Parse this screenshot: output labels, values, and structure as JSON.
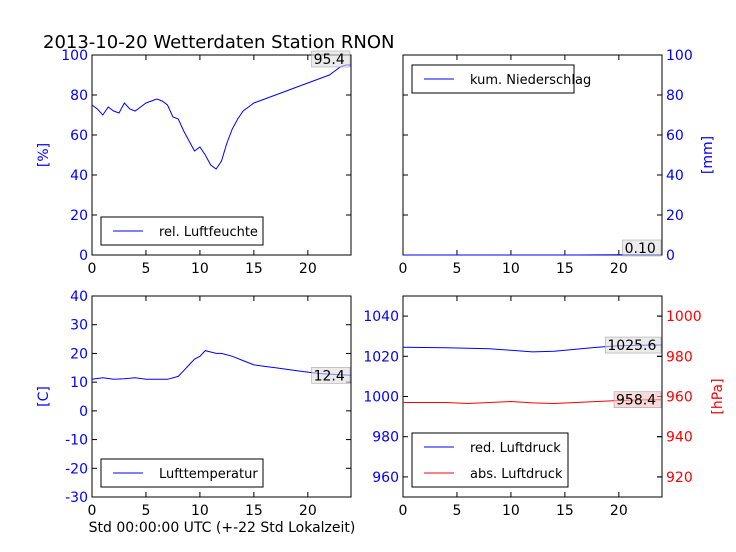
{
  "title": "2013-10-20 Wetterdaten Station RNON",
  "footer_label": "Std 00:00:00 UTC (+-22 Std Lokalzeit)",
  "colors": {
    "blue": "#0000ff",
    "red": "#ff0000",
    "black": "#000000",
    "label_box_gray": "#dddddd",
    "label_box_red": "#f4c2c2"
  },
  "chart_data": [
    {
      "id": "humidity",
      "type": "line",
      "xlim": [
        0,
        24
      ],
      "ylim": [
        0,
        100
      ],
      "xticks": [
        0,
        5,
        10,
        15,
        20
      ],
      "yticks": [
        0,
        20,
        40,
        60,
        80,
        100
      ],
      "ylabel": "[%]",
      "ylabel_side": "left",
      "ytick_color": "#0000ff",
      "legend_position": "lower-left",
      "value_label": "95.4",
      "value_label_style": "gray",
      "series": [
        {
          "name": "rel. Luftfeuchte",
          "color": "#0000ff",
          "x": [
            0,
            0.5,
            1,
            1.5,
            2,
            2.5,
            3,
            3.5,
            4,
            4.5,
            5,
            5.5,
            6,
            6.5,
            7,
            7.5,
            8,
            8.5,
            9,
            9.5,
            10,
            10.5,
            11,
            11.5,
            12,
            12.5,
            13,
            13.5,
            14,
            14.5,
            15,
            15.5,
            16,
            16.5,
            17,
            17.5,
            18,
            18.5,
            19,
            19.5,
            20,
            20.5,
            21,
            21.5,
            22,
            22.5,
            23,
            23.5,
            24
          ],
          "y": [
            75,
            73,
            70,
            74,
            72,
            71,
            76,
            73,
            72,
            74,
            76,
            77,
            78,
            77,
            75,
            69,
            68,
            62,
            57,
            52,
            54,
            50,
            45,
            43,
            47,
            56,
            63,
            68,
            72,
            74,
            76,
            77,
            78,
            79,
            80,
            81,
            82,
            83,
            84,
            85,
            86,
            87,
            88,
            89,
            90,
            92,
            94,
            95,
            95
          ]
        }
      ]
    },
    {
      "id": "precipitation",
      "type": "line",
      "xlim": [
        0,
        24
      ],
      "ylim": [
        0,
        100
      ],
      "xticks": [
        0,
        5,
        10,
        15,
        20
      ],
      "yticks": [
        0,
        20,
        40,
        60,
        80,
        100
      ],
      "ylabel": "[mm]",
      "ylabel_side": "right",
      "ytick_color": "#0000ff",
      "legend_position": "upper-left",
      "value_label": "0.10",
      "value_label_style": "gray",
      "series": [
        {
          "name": "kum. Niederschlag",
          "color": "#0000ff",
          "x": [
            0,
            4,
            8,
            12,
            16,
            20,
            24
          ],
          "y": [
            0,
            0,
            0,
            0,
            0,
            0.1,
            0.1
          ]
        }
      ]
    },
    {
      "id": "temperature",
      "type": "line",
      "xlim": [
        0,
        24
      ],
      "ylim": [
        -30,
        40
      ],
      "xticks": [
        0,
        5,
        10,
        15,
        20
      ],
      "yticks": [
        -30,
        -20,
        -10,
        0,
        10,
        20,
        30,
        40
      ],
      "ylabel": "[C]",
      "ylabel_side": "left",
      "ytick_color": "#0000ff",
      "legend_position": "lower-left",
      "value_label": "12.4",
      "value_label_style": "gray",
      "series": [
        {
          "name": "Lufttemperatur",
          "color": "#0000ff",
          "x": [
            0,
            1,
            2,
            3,
            4,
            5,
            6,
            7,
            8,
            8.5,
            9,
            9.5,
            10,
            10.5,
            11,
            11.5,
            12,
            13,
            14,
            15,
            16,
            17,
            18,
            19,
            20,
            21,
            22,
            23,
            24
          ],
          "y": [
            11,
            11.5,
            11,
            11.2,
            11.5,
            11,
            11,
            11,
            12,
            14,
            16,
            18,
            19,
            21,
            20.5,
            20,
            20,
            19,
            17.5,
            16,
            15.5,
            15,
            14.5,
            14,
            13.5,
            13,
            12.8,
            12.6,
            12.4
          ]
        }
      ]
    },
    {
      "id": "pressure",
      "type": "line",
      "xlim": [
        0,
        24
      ],
      "ylim": [
        950,
        1050
      ],
      "xticks": [
        0,
        5,
        10,
        15,
        20
      ],
      "yticks": [
        960,
        980,
        1000,
        1020,
        1040
      ],
      "ytick_color": "#0000ff",
      "y2lim": [
        910,
        1010
      ],
      "y2ticks": [
        920,
        940,
        960,
        980,
        1000
      ],
      "y2tick_color": "#ff0000",
      "y2label": "[hPa]",
      "legend_position": "lower-left",
      "value_labels": [
        {
          "text": "1025.6",
          "style": "gray",
          "series": 0
        },
        {
          "text": "958.4",
          "style": "red",
          "series": 1
        }
      ],
      "series": [
        {
          "name": "red. Luftdruck",
          "color": "#0000ff",
          "axis": "left",
          "x": [
            0,
            2,
            4,
            6,
            8,
            10,
            12,
            14,
            16,
            18,
            20,
            22,
            24
          ],
          "y": [
            1024.5,
            1024.4,
            1024.3,
            1024,
            1023.8,
            1023,
            1022.2,
            1022.5,
            1023.5,
            1024.5,
            1025.2,
            1025.5,
            1025.6
          ]
        },
        {
          "name": "abs. Luftdruck",
          "color": "#ff0000",
          "axis": "right",
          "x": [
            0,
            2,
            4,
            6,
            8,
            10,
            12,
            14,
            16,
            18,
            20,
            22,
            24
          ],
          "y": [
            957,
            957,
            957,
            956.5,
            957,
            957.5,
            956.8,
            956.5,
            957,
            957.5,
            958,
            958.3,
            958.4
          ]
        }
      ]
    }
  ]
}
